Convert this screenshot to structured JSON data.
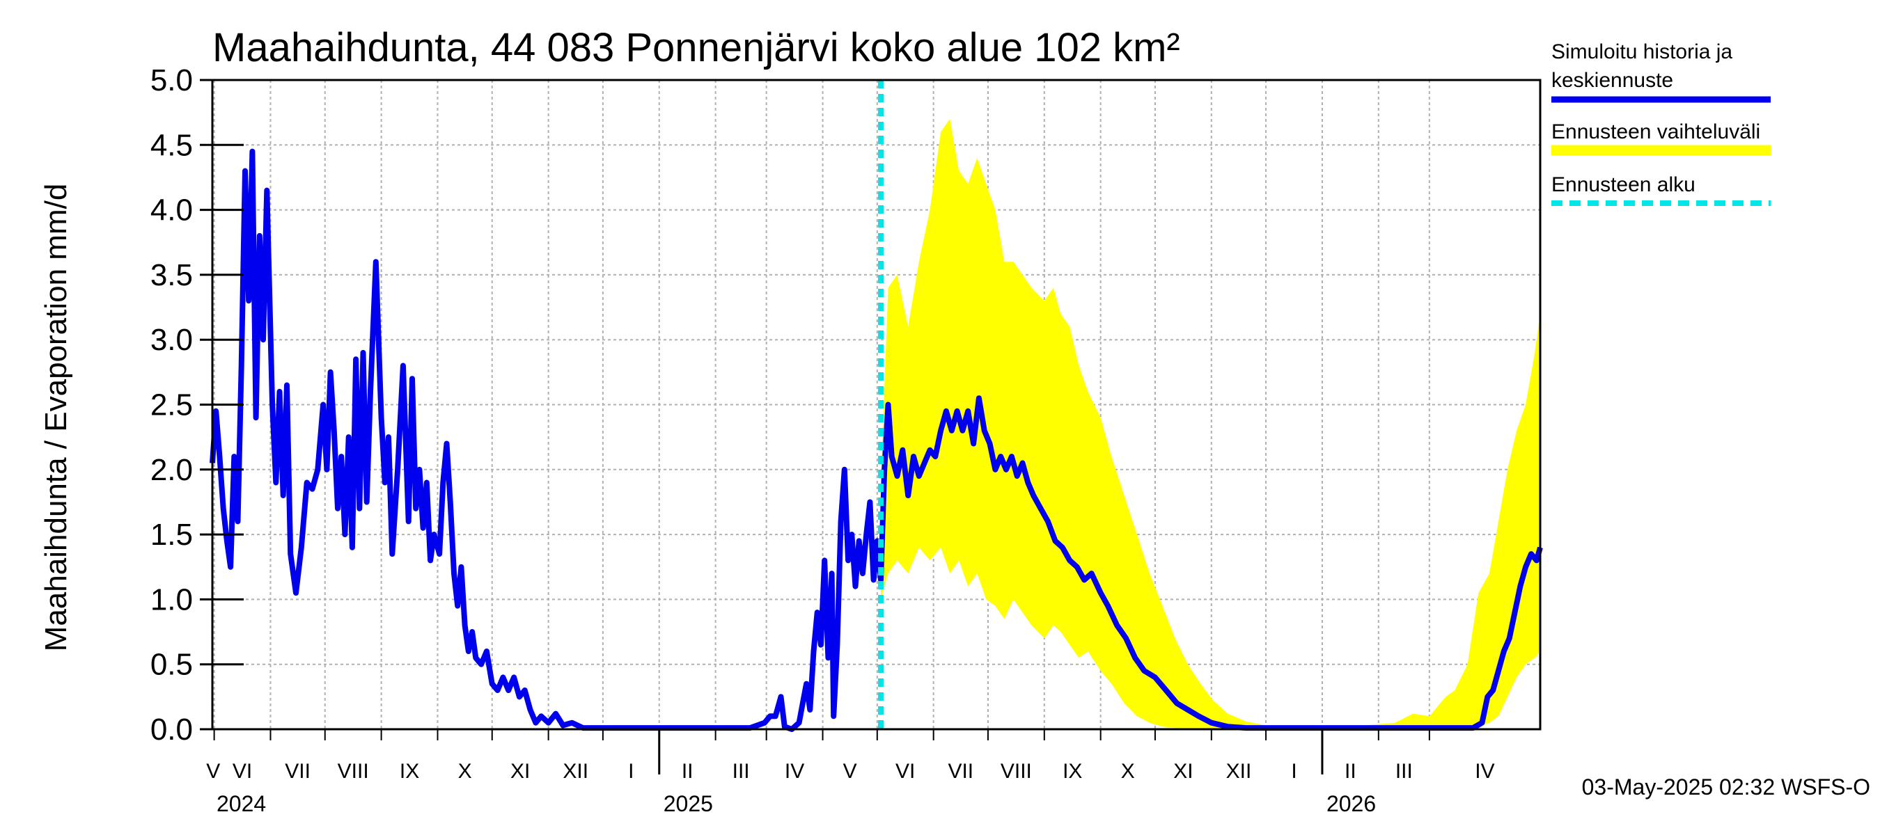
{
  "chart_data": {
    "type": "line",
    "title": "Maahaihdunta, 44 083 Ponnenjärvi koko alue 102 km²",
    "ylabel": "Maahaihdunta / Evaporation   mm/d",
    "ylim": [
      0,
      5
    ],
    "yticks": [
      "0.0",
      "0.5",
      "1.0",
      "1.5",
      "2.0",
      "2.5",
      "3.0",
      "3.5",
      "4.0",
      "4.5",
      "5.0"
    ],
    "grid": true,
    "legend_position": "right",
    "x_range": [
      "2024-04-30",
      "2026-05-01"
    ],
    "forecast_start": "2025-05-03",
    "months": [
      {
        "label": "V"
      },
      {
        "label": "VI"
      },
      {
        "label": "VII"
      },
      {
        "label": "VIII"
      },
      {
        "label": "IX"
      },
      {
        "label": "X"
      },
      {
        "label": "XI"
      },
      {
        "label": "XII"
      },
      {
        "label": "I"
      },
      {
        "label": "II"
      },
      {
        "label": "III"
      },
      {
        "label": "IV"
      },
      {
        "label": "V"
      },
      {
        "label": "VI"
      },
      {
        "label": "VII"
      },
      {
        "label": "VIII"
      },
      {
        "label": "IX"
      },
      {
        "label": "X"
      },
      {
        "label": "XI"
      },
      {
        "label": "XII"
      },
      {
        "label": "I"
      },
      {
        "label": "II"
      },
      {
        "label": "III"
      },
      {
        "label": "IV"
      }
    ],
    "years": [
      "2024",
      "2025",
      "2026"
    ],
    "series": [
      {
        "name": "Simuloitu historia ja keskiennuste",
        "color": "#0000ee",
        "points": [
          [
            "2024-04-30",
            2.05
          ],
          [
            "2024-05-02",
            2.45
          ],
          [
            "2024-05-04",
            2.1
          ],
          [
            "2024-05-06",
            1.7
          ],
          [
            "2024-05-08",
            1.45
          ],
          [
            "2024-05-10",
            1.25
          ],
          [
            "2024-05-12",
            2.1
          ],
          [
            "2024-05-14",
            1.6
          ],
          [
            "2024-05-16",
            2.8
          ],
          [
            "2024-05-18",
            4.3
          ],
          [
            "2024-05-20",
            3.3
          ],
          [
            "2024-05-22",
            4.45
          ],
          [
            "2024-05-24",
            2.4
          ],
          [
            "2024-05-26",
            3.8
          ],
          [
            "2024-05-28",
            3.0
          ],
          [
            "2024-05-30",
            4.15
          ],
          [
            "2024-06-02",
            2.5
          ],
          [
            "2024-06-04",
            1.9
          ],
          [
            "2024-06-06",
            2.6
          ],
          [
            "2024-06-08",
            1.8
          ],
          [
            "2024-06-10",
            2.65
          ],
          [
            "2024-06-12",
            1.35
          ],
          [
            "2024-06-15",
            1.05
          ],
          [
            "2024-06-18",
            1.4
          ],
          [
            "2024-06-21",
            1.9
          ],
          [
            "2024-06-24",
            1.85
          ],
          [
            "2024-06-27",
            2.0
          ],
          [
            "2024-06-30",
            2.5
          ],
          [
            "2024-07-02",
            2.0
          ],
          [
            "2024-07-04",
            2.75
          ],
          [
            "2024-07-06",
            2.3
          ],
          [
            "2024-07-08",
            1.7
          ],
          [
            "2024-07-10",
            2.1
          ],
          [
            "2024-07-12",
            1.5
          ],
          [
            "2024-07-14",
            2.25
          ],
          [
            "2024-07-16",
            1.4
          ],
          [
            "2024-07-18",
            2.85
          ],
          [
            "2024-07-20",
            1.7
          ],
          [
            "2024-07-22",
            2.9
          ],
          [
            "2024-07-24",
            1.75
          ],
          [
            "2024-07-26",
            2.6
          ],
          [
            "2024-07-29",
            3.6
          ],
          [
            "2024-08-01",
            2.4
          ],
          [
            "2024-08-03",
            1.9
          ],
          [
            "2024-08-05",
            2.25
          ],
          [
            "2024-08-07",
            1.35
          ],
          [
            "2024-08-10",
            2.0
          ],
          [
            "2024-08-13",
            2.8
          ],
          [
            "2024-08-16",
            1.6
          ],
          [
            "2024-08-18",
            2.7
          ],
          [
            "2024-08-20",
            1.7
          ],
          [
            "2024-08-22",
            2.0
          ],
          [
            "2024-08-24",
            1.55
          ],
          [
            "2024-08-26",
            1.9
          ],
          [
            "2024-08-28",
            1.3
          ],
          [
            "2024-08-30",
            1.5
          ],
          [
            "2024-09-02",
            1.35
          ],
          [
            "2024-09-04",
            1.9
          ],
          [
            "2024-09-06",
            2.2
          ],
          [
            "2024-09-08",
            1.75
          ],
          [
            "2024-09-10",
            1.2
          ],
          [
            "2024-09-12",
            0.95
          ],
          [
            "2024-09-14",
            1.25
          ],
          [
            "2024-09-16",
            0.8
          ],
          [
            "2024-09-18",
            0.6
          ],
          [
            "2024-09-20",
            0.75
          ],
          [
            "2024-09-22",
            0.55
          ],
          [
            "2024-09-25",
            0.5
          ],
          [
            "2024-09-28",
            0.6
          ],
          [
            "2024-10-01",
            0.35
          ],
          [
            "2024-10-04",
            0.3
          ],
          [
            "2024-10-07",
            0.4
          ],
          [
            "2024-10-10",
            0.3
          ],
          [
            "2024-10-13",
            0.4
          ],
          [
            "2024-10-16",
            0.25
          ],
          [
            "2024-10-19",
            0.3
          ],
          [
            "2024-10-22",
            0.15
          ],
          [
            "2024-10-25",
            0.05
          ],
          [
            "2024-10-28",
            0.1
          ],
          [
            "2024-11-01",
            0.05
          ],
          [
            "2024-11-05",
            0.12
          ],
          [
            "2024-11-09",
            0.03
          ],
          [
            "2024-11-14",
            0.05
          ],
          [
            "2024-11-20",
            0.01
          ],
          [
            "2024-12-01",
            0.01
          ],
          [
            "2025-01-15",
            0.01
          ],
          [
            "2025-02-20",
            0.01
          ],
          [
            "2025-02-28",
            0.05
          ],
          [
            "2025-03-03",
            0.1
          ],
          [
            "2025-03-06",
            0.1
          ],
          [
            "2025-03-09",
            0.25
          ],
          [
            "2025-03-11",
            0.02
          ],
          [
            "2025-03-15",
            0.0
          ],
          [
            "2025-03-19",
            0.05
          ],
          [
            "2025-03-21",
            0.2
          ],
          [
            "2025-03-23",
            0.35
          ],
          [
            "2025-03-25",
            0.15
          ],
          [
            "2025-03-27",
            0.6
          ],
          [
            "2025-03-29",
            0.9
          ],
          [
            "2025-03-31",
            0.65
          ],
          [
            "2025-04-02",
            1.3
          ],
          [
            "2025-04-04",
            0.55
          ],
          [
            "2025-04-06",
            1.2
          ],
          [
            "2025-04-07",
            0.1
          ],
          [
            "2025-04-09",
            0.65
          ],
          [
            "2025-04-11",
            1.6
          ],
          [
            "2025-04-13",
            2.0
          ],
          [
            "2025-04-15",
            1.3
          ],
          [
            "2025-04-17",
            1.5
          ],
          [
            "2025-04-19",
            1.1
          ],
          [
            "2025-04-21",
            1.45
          ],
          [
            "2025-04-23",
            1.2
          ],
          [
            "2025-04-25",
            1.5
          ],
          [
            "2025-04-27",
            1.75
          ],
          [
            "2025-04-29",
            1.15
          ],
          [
            "2025-05-01",
            1.45
          ],
          [
            "2025-05-03",
            1.15
          ],
          [
            "2025-05-05",
            2.0
          ],
          [
            "2025-05-07",
            2.5
          ],
          [
            "2025-05-09",
            2.1
          ],
          [
            "2025-05-12",
            1.95
          ],
          [
            "2025-05-15",
            2.15
          ],
          [
            "2025-05-18",
            1.8
          ],
          [
            "2025-05-21",
            2.1
          ],
          [
            "2025-05-24",
            1.95
          ],
          [
            "2025-05-27",
            2.05
          ],
          [
            "2025-05-30",
            2.15
          ],
          [
            "2025-06-02",
            2.1
          ],
          [
            "2025-06-05",
            2.3
          ],
          [
            "2025-06-08",
            2.45
          ],
          [
            "2025-06-11",
            2.3
          ],
          [
            "2025-06-14",
            2.45
          ],
          [
            "2025-06-17",
            2.3
          ],
          [
            "2025-06-20",
            2.45
          ],
          [
            "2025-06-23",
            2.2
          ],
          [
            "2025-06-26",
            2.55
          ],
          [
            "2025-06-29",
            2.3
          ],
          [
            "2025-07-02",
            2.2
          ],
          [
            "2025-07-05",
            2.0
          ],
          [
            "2025-07-08",
            2.1
          ],
          [
            "2025-07-11",
            2.0
          ],
          [
            "2025-07-14",
            2.1
          ],
          [
            "2025-07-17",
            1.95
          ],
          [
            "2025-07-20",
            2.05
          ],
          [
            "2025-07-23",
            1.9
          ],
          [
            "2025-07-26",
            1.8
          ],
          [
            "2025-07-30",
            1.7
          ],
          [
            "2025-08-03",
            1.6
          ],
          [
            "2025-08-07",
            1.45
          ],
          [
            "2025-08-11",
            1.4
          ],
          [
            "2025-08-15",
            1.3
          ],
          [
            "2025-08-19",
            1.25
          ],
          [
            "2025-08-23",
            1.15
          ],
          [
            "2025-08-27",
            1.2
          ],
          [
            "2025-09-01",
            1.05
          ],
          [
            "2025-09-05",
            0.95
          ],
          [
            "2025-09-10",
            0.8
          ],
          [
            "2025-09-15",
            0.7
          ],
          [
            "2025-09-20",
            0.55
          ],
          [
            "2025-09-25",
            0.45
          ],
          [
            "2025-10-01",
            0.4
          ],
          [
            "2025-10-07",
            0.3
          ],
          [
            "2025-10-13",
            0.2
          ],
          [
            "2025-10-19",
            0.15
          ],
          [
            "2025-10-25",
            0.1
          ],
          [
            "2025-11-01",
            0.05
          ],
          [
            "2025-11-10",
            0.02
          ],
          [
            "2025-11-20",
            0.01
          ],
          [
            "2025-12-15",
            0.01
          ],
          [
            "2026-02-15",
            0.01
          ],
          [
            "2026-03-25",
            0.01
          ],
          [
            "2026-03-30",
            0.05
          ],
          [
            "2026-04-02",
            0.25
          ],
          [
            "2026-04-05",
            0.3
          ],
          [
            "2026-04-08",
            0.45
          ],
          [
            "2026-04-11",
            0.6
          ],
          [
            "2026-04-14",
            0.7
          ],
          [
            "2026-04-17",
            0.9
          ],
          [
            "2026-04-20",
            1.1
          ],
          [
            "2026-04-23",
            1.25
          ],
          [
            "2026-04-26",
            1.35
          ],
          [
            "2026-04-29",
            1.3
          ],
          [
            "2026-05-01",
            1.4
          ]
        ]
      },
      {
        "name": "Ennusteen vaihteluväli",
        "color": "#ffff00",
        "band": [
          [
            "2025-05-03",
            1.0,
            1.9
          ],
          [
            "2025-05-07",
            1.2,
            3.4
          ],
          [
            "2025-05-12",
            1.3,
            3.5
          ],
          [
            "2025-05-18",
            1.2,
            3.1
          ],
          [
            "2025-05-24",
            1.4,
            3.6
          ],
          [
            "2025-05-30",
            1.3,
            4.0
          ],
          [
            "2025-06-05",
            1.4,
            4.6
          ],
          [
            "2025-06-10",
            1.2,
            4.7
          ],
          [
            "2025-06-15",
            1.3,
            4.3
          ],
          [
            "2025-06-20",
            1.1,
            4.2
          ],
          [
            "2025-06-25",
            1.2,
            4.4
          ],
          [
            "2025-06-30",
            1.0,
            4.2
          ],
          [
            "2025-07-05",
            0.95,
            4.0
          ],
          [
            "2025-07-10",
            0.85,
            3.6
          ],
          [
            "2025-07-15",
            1.0,
            3.6
          ],
          [
            "2025-07-20",
            0.9,
            3.5
          ],
          [
            "2025-07-25",
            0.8,
            3.4
          ],
          [
            "2025-08-01",
            0.7,
            3.3
          ],
          [
            "2025-08-06",
            0.8,
            3.4
          ],
          [
            "2025-08-10",
            0.75,
            3.2
          ],
          [
            "2025-08-15",
            0.65,
            3.1
          ],
          [
            "2025-08-20",
            0.55,
            2.8
          ],
          [
            "2025-08-25",
            0.6,
            2.6
          ],
          [
            "2025-09-01",
            0.45,
            2.4
          ],
          [
            "2025-09-07",
            0.35,
            2.1
          ],
          [
            "2025-09-14",
            0.2,
            1.8
          ],
          [
            "2025-09-21",
            0.1,
            1.5
          ],
          [
            "2025-09-28",
            0.05,
            1.2
          ],
          [
            "2025-10-05",
            0.02,
            0.95
          ],
          [
            "2025-10-12",
            0.01,
            0.7
          ],
          [
            "2025-10-19",
            0.0,
            0.5
          ],
          [
            "2025-10-26",
            0.0,
            0.35
          ],
          [
            "2025-11-02",
            0.0,
            0.22
          ],
          [
            "2025-11-10",
            0.0,
            0.12
          ],
          [
            "2025-11-20",
            0.0,
            0.06
          ],
          [
            "2025-12-01",
            0.0,
            0.03
          ],
          [
            "2026-01-15",
            0.0,
            0.02
          ],
          [
            "2026-02-10",
            0.0,
            0.05
          ],
          [
            "2026-02-20",
            0.0,
            0.12
          ],
          [
            "2026-03-01",
            0.0,
            0.1
          ],
          [
            "2026-03-10",
            0.0,
            0.25
          ],
          [
            "2026-03-15",
            0.0,
            0.3
          ],
          [
            "2026-03-22",
            0.0,
            0.5
          ],
          [
            "2026-03-28",
            0.02,
            1.05
          ],
          [
            "2026-04-03",
            0.05,
            1.2
          ],
          [
            "2026-04-08",
            0.1,
            1.6
          ],
          [
            "2026-04-13",
            0.25,
            2.0
          ],
          [
            "2026-04-18",
            0.4,
            2.3
          ],
          [
            "2026-04-23",
            0.5,
            2.5
          ],
          [
            "2026-04-28",
            0.55,
            2.9
          ],
          [
            "2026-05-01",
            0.6,
            3.2
          ]
        ]
      }
    ]
  },
  "legend": {
    "history_line1": "Simuloitu historia ja",
    "history_line2": "keskiennuste",
    "range": "Ennusteen vaihteluväli",
    "forecast_start": "Ennusteen alku"
  },
  "timestamp": "03-May-2025 02:32 WSFS-O",
  "colors": {
    "history": "#0000ee",
    "band": "#ffff00",
    "forecast_marker": "#00e5e5",
    "grid": "#b0b0b0"
  }
}
